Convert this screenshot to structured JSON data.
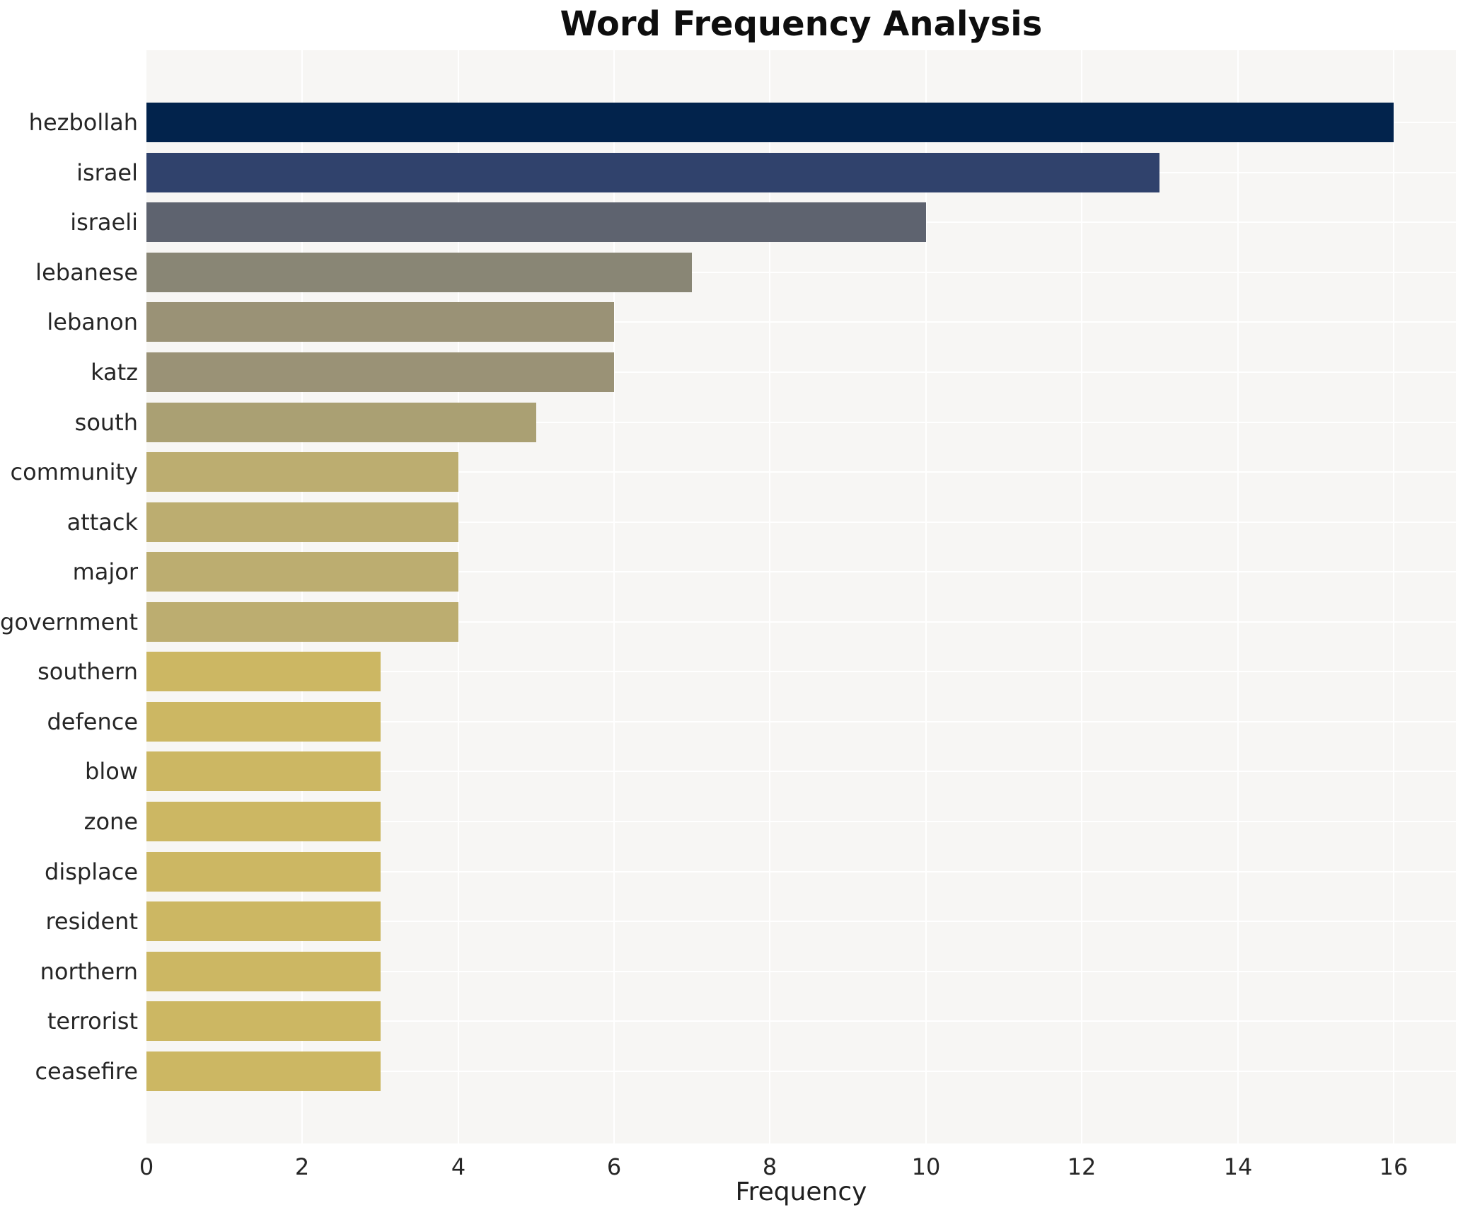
{
  "chart_data": {
    "type": "bar",
    "orientation": "horizontal",
    "title": "Word Frequency Analysis",
    "xlabel": "Frequency",
    "ylabel": "",
    "categories": [
      "hezbollah",
      "israel",
      "israeli",
      "lebanese",
      "lebanon",
      "katz",
      "south",
      "community",
      "attack",
      "major",
      "government",
      "southern",
      "defence",
      "blow",
      "zone",
      "displace",
      "resident",
      "northern",
      "terrorist",
      "ceasefire"
    ],
    "values": [
      16,
      13,
      10,
      7,
      6,
      6,
      5,
      4,
      4,
      4,
      4,
      3,
      3,
      3,
      3,
      3,
      3,
      3,
      3,
      3
    ],
    "bar_colors": [
      "#02234c",
      "#30426c",
      "#5e636f",
      "#898675",
      "#9a9276",
      "#9a9276",
      "#aaa073",
      "#bcad70",
      "#bcad70",
      "#bcad70",
      "#bcad70",
      "#ccb763",
      "#ccb763",
      "#ccb763",
      "#ccb763",
      "#ccb763",
      "#ccb763",
      "#ccb763",
      "#ccb763",
      "#ccb763"
    ],
    "x_ticks": [
      0,
      2,
      4,
      6,
      8,
      10,
      12,
      14,
      16
    ],
    "xlim": [
      0,
      16.8
    ],
    "grid": true,
    "gridline_color": "#ffffff",
    "plot_background": "#f7f6f4",
    "figure_background": "#ffffff",
    "legend": "none"
  }
}
